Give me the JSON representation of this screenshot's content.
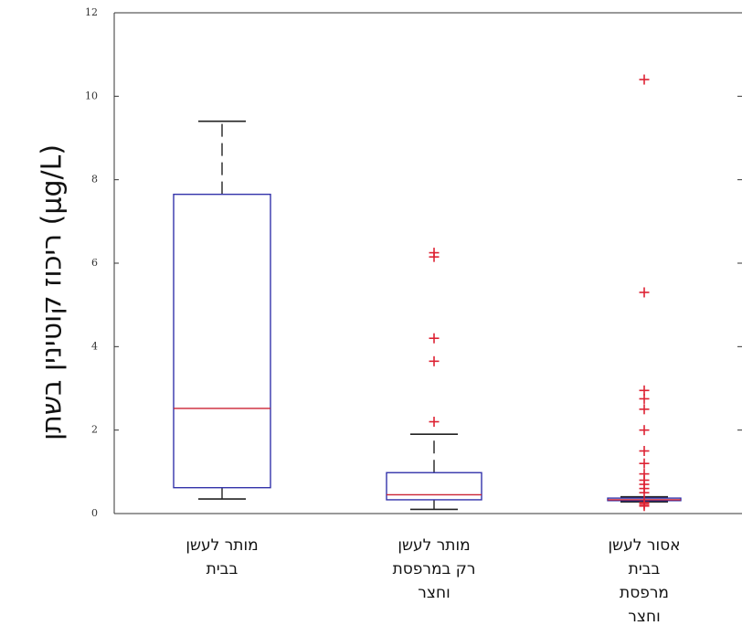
{
  "chart_data": {
    "type": "box",
    "ylabel": "ריכוז קוטינין בשתן (μg/L)",
    "ylim": [
      0,
      12
    ],
    "yticks": [
      0,
      2,
      4,
      6,
      8,
      10,
      12
    ],
    "categories": [
      "מותר לעשן\nבבית",
      "מותר לעשן\nרק במרפסת\nוחצר",
      "אסור לעשן\nבבית\nמרפסת\nוחצר"
    ],
    "boxes": [
      {
        "whisker_low": 0.35,
        "q1": 0.62,
        "median": 2.52,
        "q3": 7.65,
        "whisker_high": 9.4,
        "outliers": []
      },
      {
        "whisker_low": 0.1,
        "q1": 0.33,
        "median": 0.45,
        "q3": 0.98,
        "whisker_high": 1.9,
        "outliers": [
          2.2,
          3.65,
          4.2,
          6.15,
          6.25
        ]
      },
      {
        "whisker_low": 0.28,
        "q1": 0.31,
        "median": 0.33,
        "q3": 0.37,
        "whisker_high": 0.4,
        "outliers": [
          0.5,
          0.6,
          0.7,
          0.8,
          0.95,
          1.2,
          1.5,
          2.0,
          2.5,
          2.75,
          2.95,
          5.3,
          10.4,
          0.18,
          0.22,
          0.26
        ]
      }
    ],
    "grid": false,
    "colors": {
      "box": "#3333aa",
      "median": "#cc2233",
      "whisker": "#222222",
      "outlier": "#dd2233"
    }
  }
}
